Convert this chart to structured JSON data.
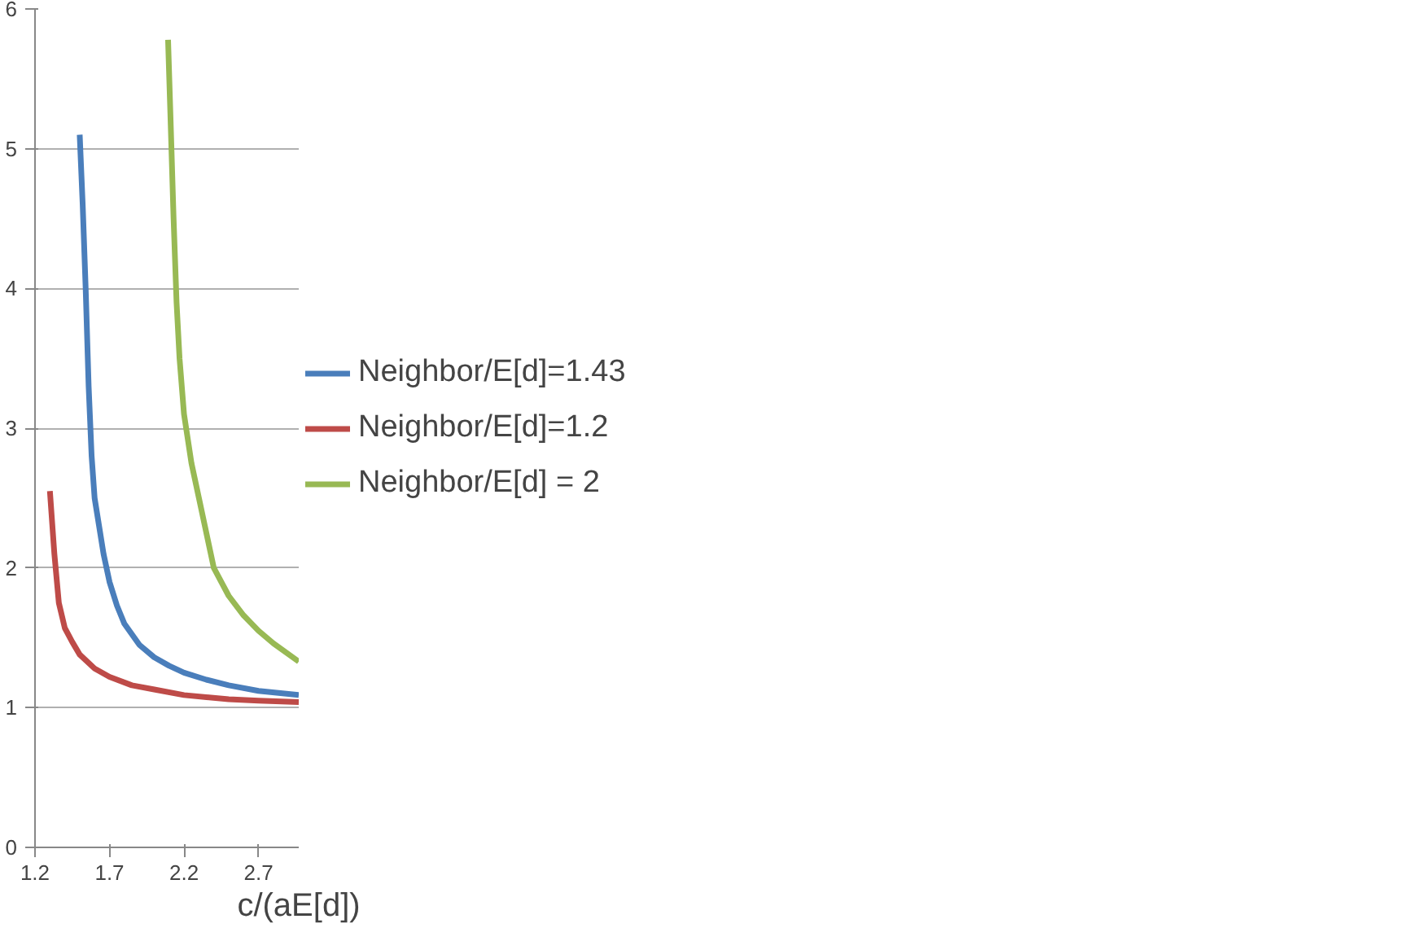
{
  "chart_data": {
    "type": "line",
    "xlabel": "c/(aE[d])",
    "xlim": [
      1.2,
      2.97
    ],
    "ylim": [
      0,
      6
    ],
    "xticks": [
      1.2,
      1.7,
      2.2,
      2.7
    ],
    "yticks": [
      0,
      1,
      2,
      3,
      4,
      5,
      6
    ],
    "grid": "y",
    "legend": "right",
    "marker": "none",
    "line_style": "solid",
    "series": [
      {
        "name": "Neighbor/E[d]=1.43",
        "color": "#4a7ebb",
        "x": [
          1.5,
          1.52,
          1.54,
          1.56,
          1.58,
          1.6,
          1.63,
          1.66,
          1.7,
          1.75,
          1.8,
          1.9,
          2.0,
          2.1,
          2.2,
          2.35,
          2.5,
          2.7,
          2.97
        ],
        "values": [
          5.1,
          4.6,
          4.0,
          3.3,
          2.8,
          2.5,
          2.3,
          2.1,
          1.9,
          1.73,
          1.6,
          1.45,
          1.36,
          1.3,
          1.25,
          1.2,
          1.16,
          1.12,
          1.09
        ]
      },
      {
        "name": "Neighbor/E[d]=1.2",
        "color": "#be4b48",
        "x": [
          1.3,
          1.33,
          1.36,
          1.4,
          1.45,
          1.5,
          1.6,
          1.7,
          1.85,
          2.0,
          2.2,
          2.5,
          2.7,
          2.97
        ],
        "values": [
          2.55,
          2.1,
          1.75,
          1.57,
          1.47,
          1.38,
          1.28,
          1.22,
          1.16,
          1.13,
          1.09,
          1.06,
          1.05,
          1.04
        ]
      },
      {
        "name": "Neighbor/E[d] = 2",
        "color": "#98b954",
        "x": [
          2.093,
          2.11,
          2.13,
          2.15,
          2.17,
          2.2,
          2.25,
          2.3,
          2.4,
          2.5,
          2.6,
          2.7,
          2.8,
          2.97
        ],
        "values": [
          5.78,
          5.2,
          4.5,
          3.9,
          3.5,
          3.1,
          2.75,
          2.5,
          2.0,
          1.8,
          1.66,
          1.55,
          1.46,
          1.33
        ]
      }
    ]
  }
}
